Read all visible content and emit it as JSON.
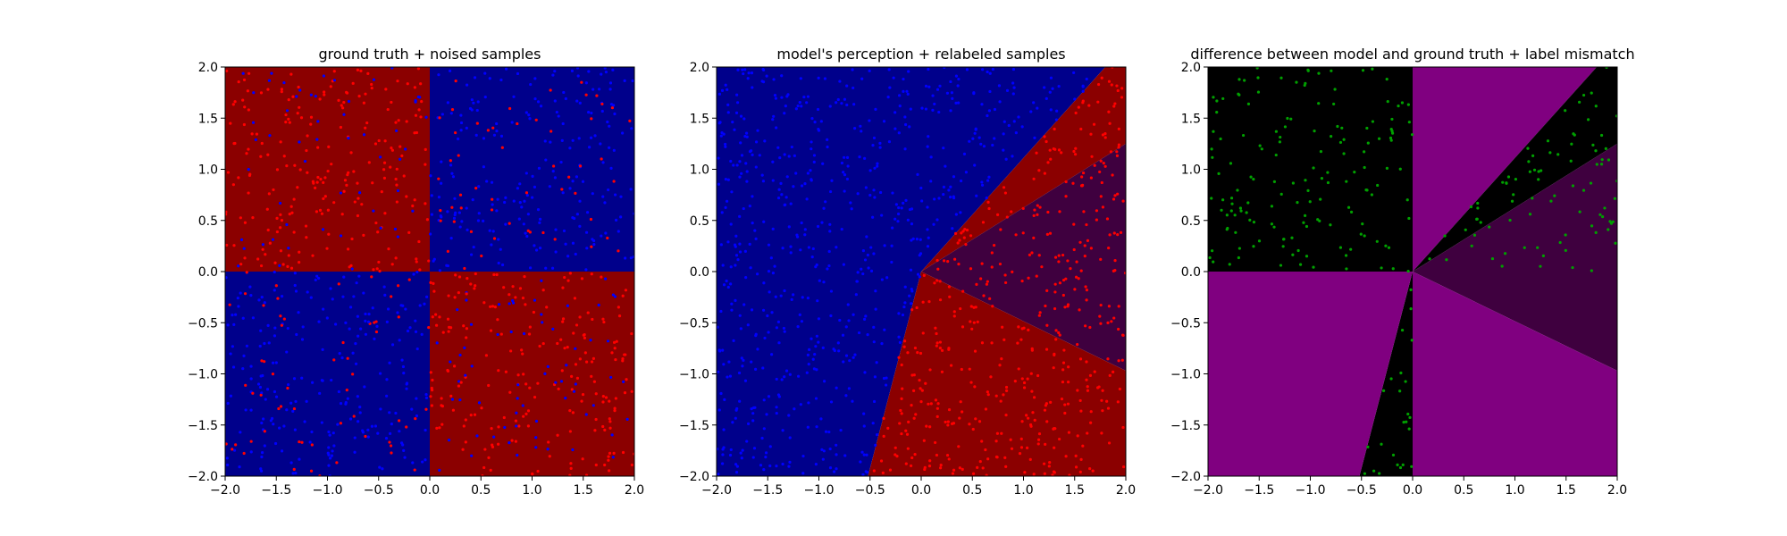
{
  "figure": {
    "background": "#ffffff"
  },
  "colors": {
    "dark_blue": "#00008b",
    "dark_red": "#8b0000",
    "dark_purple": "#3f003f",
    "purple": "#800080",
    "black": "#000000",
    "point_red": "#ff0000",
    "point_blue": "#0000ff",
    "point_green": "#00a000"
  },
  "chart_data": [
    {
      "type": "scatter",
      "title": "ground truth + noised samples",
      "xlim": [
        -2.0,
        2.0
      ],
      "ylim": [
        -2.0,
        2.0
      ],
      "xticks": [
        "−2.0",
        "−1.5",
        "−1.0",
        "−0.5",
        "0.0",
        "0.5",
        "1.0",
        "1.5",
        "2.0"
      ],
      "yticks": [
        "−2.0",
        "−1.5",
        "−1.0",
        "−0.5",
        "0.0",
        "0.5",
        "1.0",
        "1.5",
        "2.0"
      ],
      "grid": false,
      "background_regions": [
        {
          "color": "#8b0000",
          "polygon": [
            [
              -2,
              0
            ],
            [
              0,
              0
            ],
            [
              0,
              2
            ],
            [
              -2,
              2
            ]
          ]
        },
        {
          "color": "#00008b",
          "polygon": [
            [
              0,
              0
            ],
            [
              2,
              0
            ],
            [
              2,
              2
            ],
            [
              0,
              2
            ]
          ]
        },
        {
          "color": "#00008b",
          "polygon": [
            [
              -2,
              -2
            ],
            [
              0,
              -2
            ],
            [
              0,
              0
            ],
            [
              -2,
              0
            ]
          ]
        },
        {
          "color": "#8b0000",
          "polygon": [
            [
              0,
              -2
            ],
            [
              2,
              -2
            ],
            [
              2,
              0
            ],
            [
              0,
              0
            ]
          ]
        }
      ],
      "series": [
        {
          "rule": "xor_quadrant_noised",
          "count": 1100,
          "seed": 11
        }
      ]
    },
    {
      "type": "scatter",
      "title": "model's perception + relabeled samples",
      "xlim": [
        -2.0,
        2.0
      ],
      "ylim": [
        -2.0,
        2.0
      ],
      "xticks": [
        "−2.0",
        "−1.5",
        "−1.0",
        "−0.5",
        "0.0",
        "0.5",
        "1.0",
        "1.5",
        "2.0"
      ],
      "yticks": [
        "−2.0",
        "−1.5",
        "−1.0",
        "−0.5",
        "0.0",
        "0.5",
        "1.0",
        "1.5",
        "2.0"
      ],
      "grid": false,
      "background_regions": [
        {
          "color": "#00008b",
          "polygon": [
            [
              -2,
              -2
            ],
            [
              -0.52,
              -2
            ],
            [
              0,
              0
            ],
            [
              1.8,
              2
            ],
            [
              -2,
              2
            ]
          ]
        },
        {
          "color": "#8b0000",
          "polygon": [
            [
              0,
              0
            ],
            [
              1.8,
              2
            ],
            [
              2,
              2
            ],
            [
              2,
              1.25
            ]
          ]
        },
        {
          "color": "#3f003f",
          "polygon": [
            [
              0,
              0
            ],
            [
              2,
              1.25
            ],
            [
              2,
              -0.97
            ]
          ]
        },
        {
          "color": "#8b0000",
          "polygon": [
            [
              0,
              0
            ],
            [
              2,
              -0.97
            ],
            [
              2,
              -2
            ],
            [
              -0.52,
              -2
            ]
          ]
        }
      ],
      "series": [
        {
          "rule": "model_relabeled",
          "count": 1100,
          "seed": 23
        }
      ]
    },
    {
      "type": "scatter",
      "title": "difference between model and ground truth + label mismatch",
      "xlim": [
        -2.0,
        2.0
      ],
      "ylim": [
        -2.0,
        2.0
      ],
      "xticks": [
        "−2.0",
        "−1.5",
        "−1.0",
        "−0.5",
        "0.0",
        "0.5",
        "1.0",
        "1.5",
        "2.0"
      ],
      "yticks": [
        "−2.0",
        "−1.5",
        "−1.0",
        "−0.5",
        "0.0",
        "0.5",
        "1.0",
        "1.5",
        "2.0"
      ],
      "grid": false,
      "background_regions": [
        {
          "color": "#000000",
          "polygon": [
            [
              -2,
              0
            ],
            [
              0,
              0
            ],
            [
              0,
              2
            ],
            [
              -2,
              2
            ]
          ]
        },
        {
          "color": "#800080",
          "polygon": [
            [
              0,
              0
            ],
            [
              1.8,
              2
            ],
            [
              0,
              2
            ]
          ]
        },
        {
          "color": "#000000",
          "polygon": [
            [
              0,
              0
            ],
            [
              2,
              1.25
            ],
            [
              2,
              2
            ],
            [
              1.8,
              2
            ]
          ]
        },
        {
          "color": "#3f003f",
          "polygon": [
            [
              0,
              0
            ],
            [
              2,
              -0.97
            ],
            [
              2,
              1.25
            ]
          ]
        },
        {
          "color": "#800080",
          "polygon": [
            [
              0,
              -2
            ],
            [
              2,
              -2
            ],
            [
              2,
              -0.97
            ],
            [
              0,
              0
            ]
          ]
        },
        {
          "color": "#000000",
          "polygon": [
            [
              -0.52,
              -2
            ],
            [
              0,
              -2
            ],
            [
              0,
              0
            ]
          ]
        },
        {
          "color": "#800080",
          "polygon": [
            [
              -2,
              -2
            ],
            [
              -0.52,
              -2
            ],
            [
              0,
              0
            ],
            [
              -2,
              0
            ]
          ]
        }
      ],
      "series": [
        {
          "rule": "mismatch_only",
          "count": 260,
          "seed": 37,
          "color": "#00a000"
        }
      ]
    }
  ]
}
